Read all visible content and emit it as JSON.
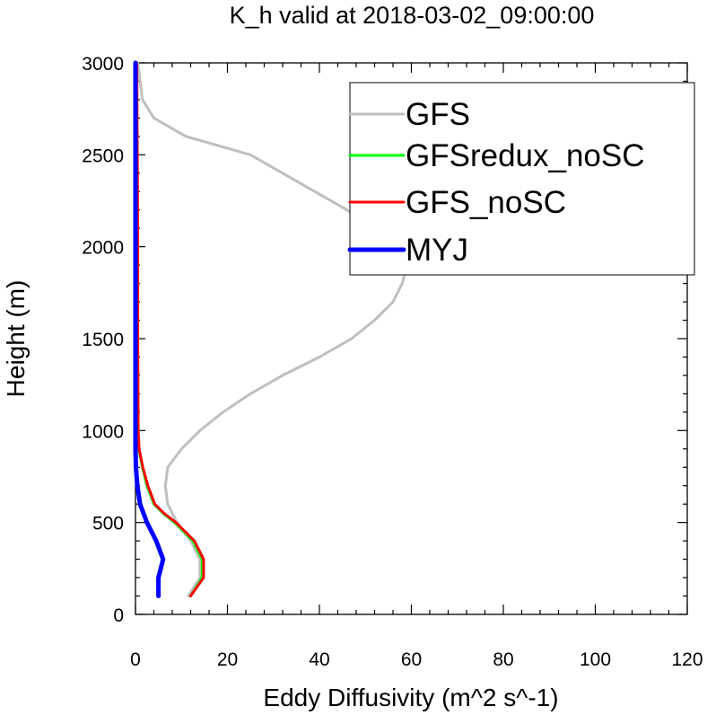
{
  "chart_data": {
    "type": "line",
    "title": "K_h valid at 2018-03-02_09:00:00",
    "xlabel": "Eddy Diffusivity (m^2 s^-1)",
    "ylabel": "Height (m)",
    "xlim": [
      0,
      120
    ],
    "ylim": [
      0,
      3000
    ],
    "xticks": [
      "0",
      "20",
      "40",
      "60",
      "80",
      "100",
      "120"
    ],
    "yticks": [
      "0",
      "500",
      "1000",
      "1500",
      "2000",
      "2500",
      "3000"
    ],
    "grid": false,
    "legend": "top-right",
    "series": [
      {
        "name": "GFS",
        "color": "#bfbfbf",
        "width": 3,
        "points": [
          [
            11.5,
            100
          ],
          [
            14,
            200
          ],
          [
            14,
            300
          ],
          [
            12,
            400
          ],
          [
            9,
            500
          ],
          [
            7,
            600
          ],
          [
            6.5,
            700
          ],
          [
            7,
            800
          ],
          [
            10,
            900
          ],
          [
            14,
            1000
          ],
          [
            19,
            1100
          ],
          [
            25,
            1200
          ],
          [
            32,
            1300
          ],
          [
            40,
            1400
          ],
          [
            47,
            1500
          ],
          [
            52,
            1600
          ],
          [
            56,
            1700
          ],
          [
            58,
            1800
          ],
          [
            59,
            1900
          ],
          [
            57,
            2000
          ],
          [
            52,
            2100
          ],
          [
            46,
            2200
          ],
          [
            39,
            2300
          ],
          [
            25,
            2500
          ],
          [
            11,
            2600
          ],
          [
            4,
            2700
          ],
          [
            1.5,
            2800
          ],
          [
            0.5,
            3000
          ]
        ]
      },
      {
        "name": "GFSredux_noSC",
        "color": "#00ff00",
        "width": 3,
        "points": [
          [
            12,
            100
          ],
          [
            14.5,
            200
          ],
          [
            14.5,
            300
          ],
          [
            12.5,
            400
          ],
          [
            8.5,
            500
          ],
          [
            6,
            550
          ],
          [
            4,
            600
          ],
          [
            2.5,
            700
          ],
          [
            1.5,
            800
          ],
          [
            0.7,
            900
          ],
          [
            0.5,
            1000
          ],
          [
            0.4,
            1500
          ],
          [
            0.4,
            2000
          ],
          [
            0.3,
            2500
          ],
          [
            0.2,
            3000
          ]
        ]
      },
      {
        "name": "GFS_noSC",
        "color": "#ff0000",
        "width": 3,
        "points": [
          [
            12,
            100
          ],
          [
            14.8,
            200
          ],
          [
            14.8,
            300
          ],
          [
            12.8,
            400
          ],
          [
            8.8,
            500
          ],
          [
            6.2,
            550
          ],
          [
            4.2,
            600
          ],
          [
            2.7,
            700
          ],
          [
            1.6,
            800
          ],
          [
            0.8,
            900
          ],
          [
            0.6,
            1000
          ],
          [
            0.5,
            1500
          ],
          [
            0.5,
            2000
          ],
          [
            0.4,
            2500
          ],
          [
            0.3,
            3000
          ]
        ]
      },
      {
        "name": "MYJ",
        "color": "#0000ff",
        "width": 5,
        "points": [
          [
            5,
            100
          ],
          [
            5,
            200
          ],
          [
            6,
            300
          ],
          [
            4.5,
            400
          ],
          [
            2.5,
            500
          ],
          [
            1,
            600
          ],
          [
            0.4,
            700
          ],
          [
            0.1,
            800
          ],
          [
            0,
            900
          ],
          [
            0,
            1000
          ],
          [
            0,
            1500
          ],
          [
            0,
            2000
          ],
          [
            0,
            2500
          ],
          [
            0,
            3000
          ]
        ]
      }
    ]
  }
}
